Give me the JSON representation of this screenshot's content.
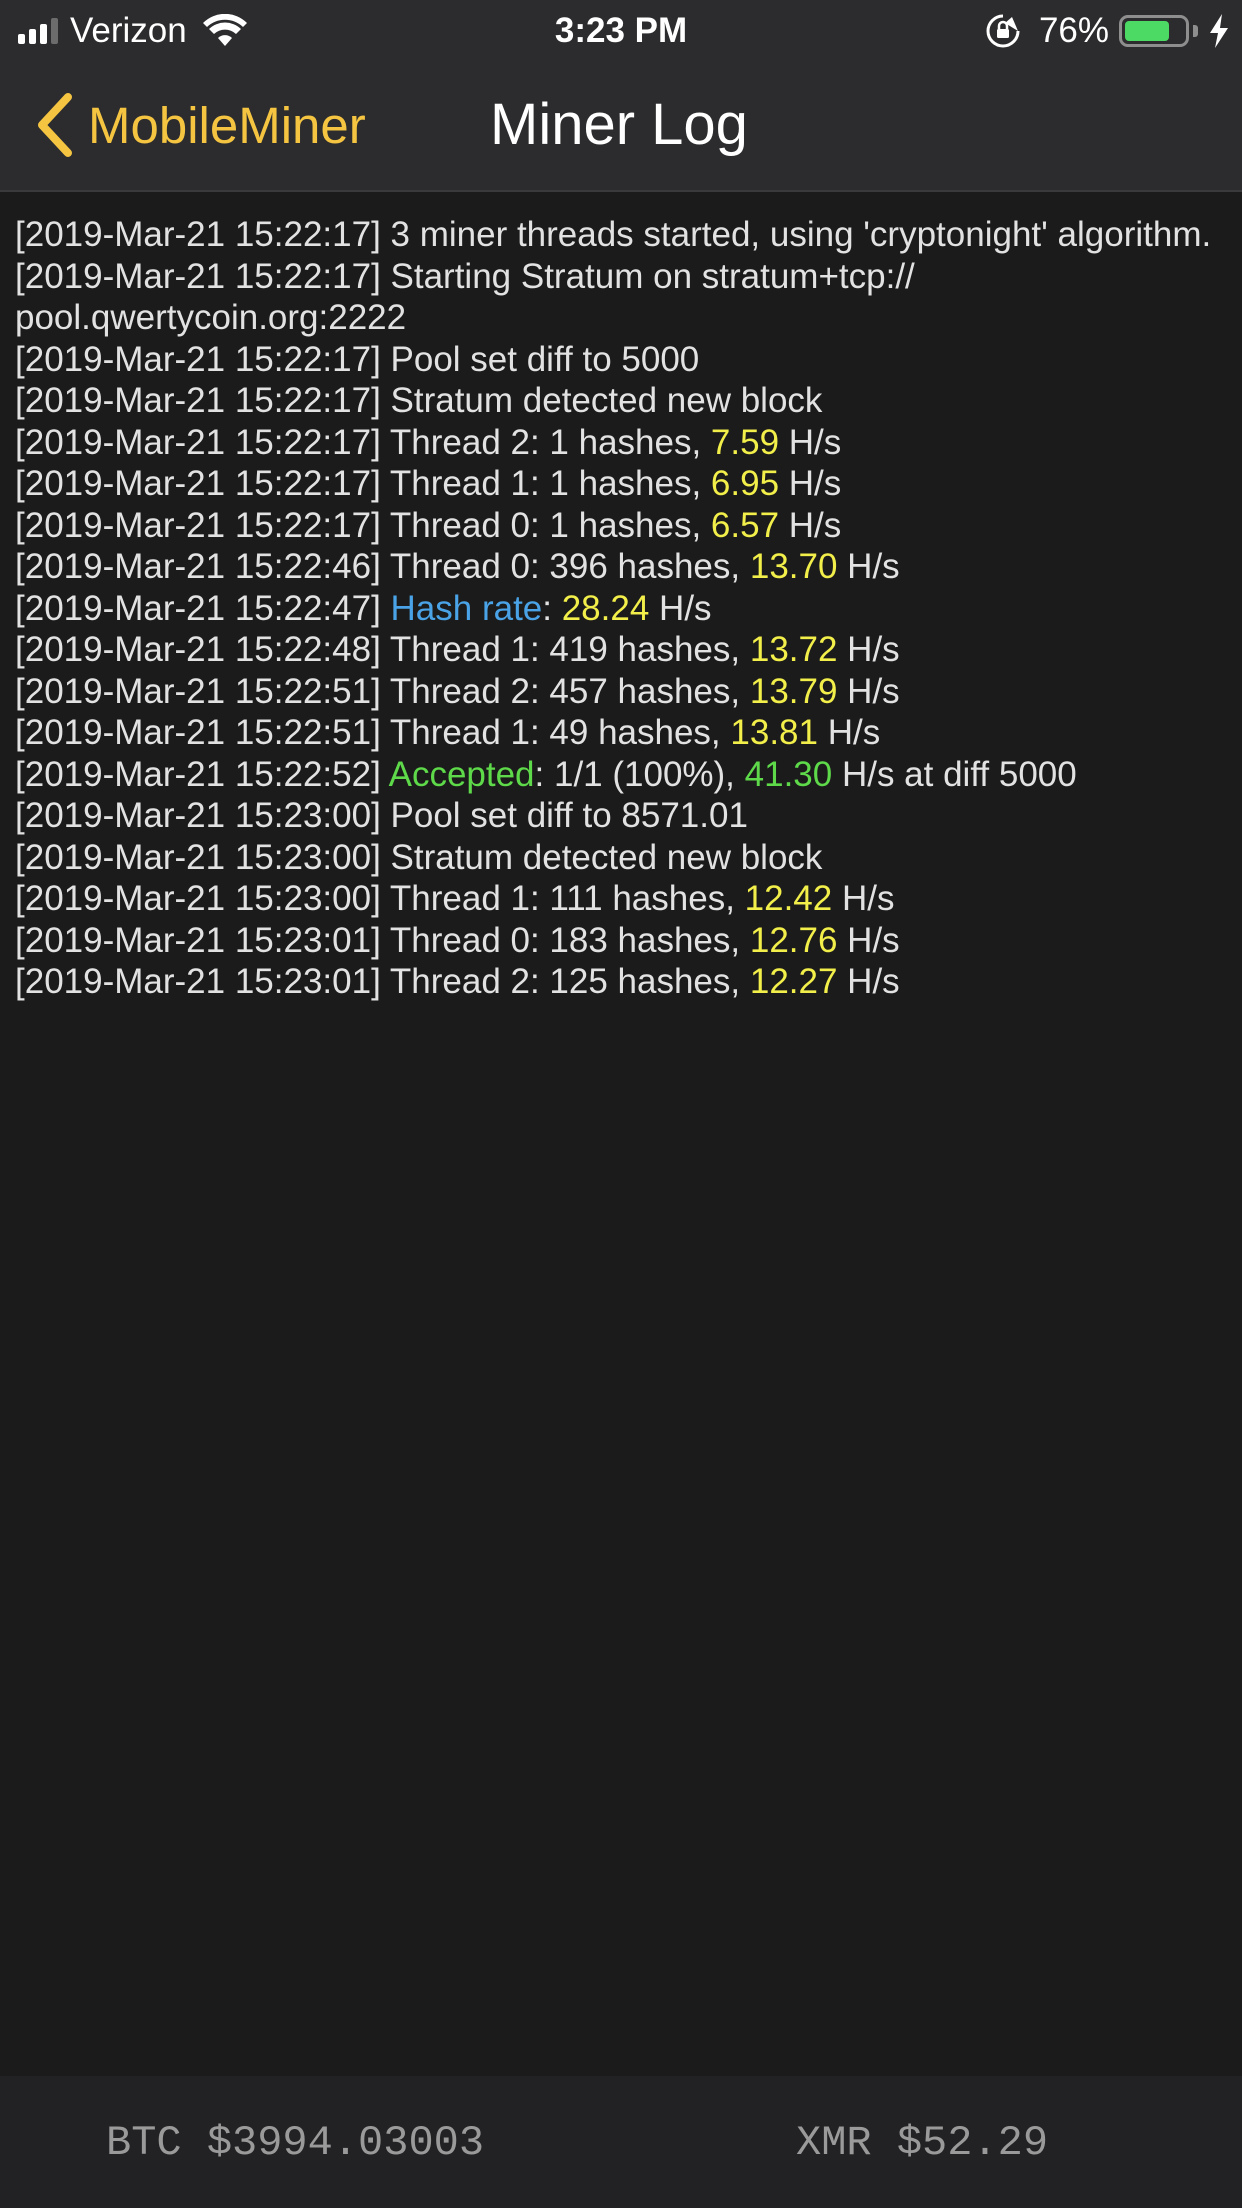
{
  "status_bar": {
    "carrier": "Verizon",
    "time": "3:23 PM",
    "battery_percent": "76%",
    "battery_level": 0.76,
    "signal_bars": 4,
    "signal_bars_filled": 3
  },
  "nav": {
    "back_label": "MobileMiner",
    "title": "Miner Log"
  },
  "log": [
    {
      "parts": [
        {
          "t": "[2019-Mar-21 15:22:17] 3 miner threads started, using 'cryptonight' algorithm."
        }
      ]
    },
    {
      "parts": [
        {
          "t": "[2019-Mar-21 15:22:17] Starting Stratum on stratum+tcp://"
        }
      ]
    },
    {
      "parts": [
        {
          "t": "pool.qwertycoin.org:2222"
        }
      ]
    },
    {
      "parts": [
        {
          "t": "[2019-Mar-21 15:22:17] Pool set diff to 5000"
        }
      ]
    },
    {
      "parts": [
        {
          "t": "[2019-Mar-21 15:22:17] Stratum detected new block"
        }
      ]
    },
    {
      "parts": [
        {
          "t": "[2019-Mar-21 15:22:17] Thread 2: 1 hashes, "
        },
        {
          "t": "7.59",
          "c": "y"
        },
        {
          "t": " H/s"
        }
      ]
    },
    {
      "parts": [
        {
          "t": "[2019-Mar-21 15:22:17] Thread 1: 1 hashes, "
        },
        {
          "t": "6.95",
          "c": "y"
        },
        {
          "t": " H/s"
        }
      ]
    },
    {
      "parts": [
        {
          "t": "[2019-Mar-21 15:22:17] Thread 0: 1 hashes, "
        },
        {
          "t": "6.57",
          "c": "y"
        },
        {
          "t": " H/s"
        }
      ]
    },
    {
      "parts": [
        {
          "t": "[2019-Mar-21 15:22:46] Thread 0: 396 hashes, "
        },
        {
          "t": "13.70",
          "c": "y"
        },
        {
          "t": " H/s"
        }
      ]
    },
    {
      "parts": [
        {
          "t": "[2019-Mar-21 15:22:47] "
        },
        {
          "t": "Hash rate",
          "c": "b"
        },
        {
          "t": ": "
        },
        {
          "t": "28.24",
          "c": "y"
        },
        {
          "t": " H/s"
        }
      ]
    },
    {
      "parts": [
        {
          "t": "[2019-Mar-21 15:22:48] Thread 1: 419 hashes, "
        },
        {
          "t": "13.72",
          "c": "y"
        },
        {
          "t": " H/s"
        }
      ]
    },
    {
      "parts": [
        {
          "t": "[2019-Mar-21 15:22:51] Thread 2: 457 hashes, "
        },
        {
          "t": "13.79",
          "c": "y"
        },
        {
          "t": " H/s"
        }
      ]
    },
    {
      "parts": [
        {
          "t": "[2019-Mar-21 15:22:51] Thread 1: 49 hashes, "
        },
        {
          "t": "13.81",
          "c": "y"
        },
        {
          "t": " H/s"
        }
      ]
    },
    {
      "parts": [
        {
          "t": "[2019-Mar-21 15:22:52] "
        },
        {
          "t": "Accepted",
          "c": "g"
        },
        {
          "t": ": 1/1 (100%), "
        },
        {
          "t": "41.30",
          "c": "g"
        },
        {
          "t": " H/s at diff 5000"
        }
      ]
    },
    {
      "parts": [
        {
          "t": "[2019-Mar-21 15:23:00] Pool set diff to 8571.01"
        }
      ]
    },
    {
      "parts": [
        {
          "t": "[2019-Mar-21 15:23:00] Stratum detected new block"
        }
      ]
    },
    {
      "parts": [
        {
          "t": "[2019-Mar-21 15:23:00] Thread 1: 111 hashes, "
        },
        {
          "t": "12.42",
          "c": "y"
        },
        {
          "t": " H/s"
        }
      ]
    },
    {
      "parts": [
        {
          "t": "[2019-Mar-21 15:23:01] Thread 0: 183 hashes, "
        },
        {
          "t": "12.76",
          "c": "y"
        },
        {
          "t": " H/s"
        }
      ]
    },
    {
      "parts": [
        {
          "t": "[2019-Mar-21 15:23:01] Thread 2: 125 hashes, "
        },
        {
          "t": "12.27",
          "c": "y"
        },
        {
          "t": " H/s"
        }
      ]
    }
  ],
  "ticker": {
    "btc": "BTC $3994.03003",
    "xmr": "XMR $52.29"
  },
  "colors": {
    "accent": "#f5c542",
    "hashrate_value": "#f2ee4a",
    "hash_rate_label": "#4aa3e6",
    "accepted": "#5ed94a",
    "background": "#1b1b1b",
    "battery": "#4cd964"
  },
  "icons": [
    "signal-icon",
    "wifi-icon",
    "rotation-lock-icon",
    "battery-icon",
    "charging-bolt-icon",
    "chevron-left-icon"
  ]
}
